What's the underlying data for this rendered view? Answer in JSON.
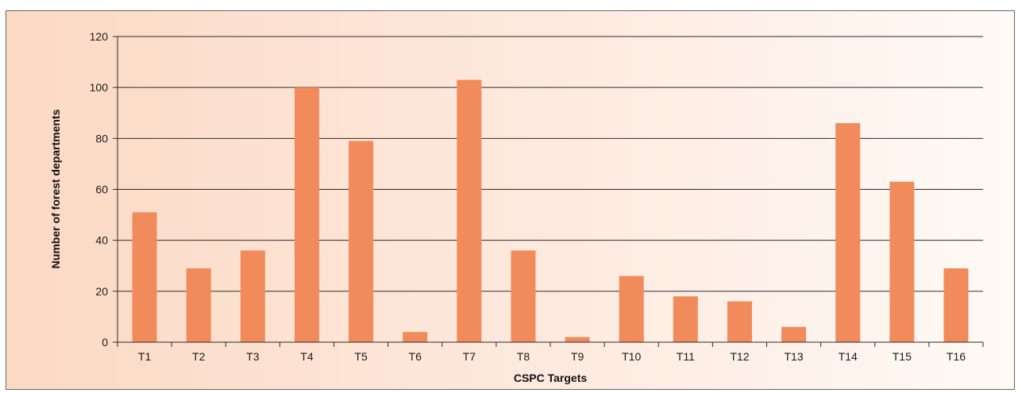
{
  "chart_data": {
    "type": "bar",
    "categories": [
      "T1",
      "T2",
      "T3",
      "T4",
      "T5",
      "T6",
      "T7",
      "T8",
      "T9",
      "T10",
      "T11",
      "T12",
      "T13",
      "T14",
      "T15",
      "T16"
    ],
    "values": [
      51,
      29,
      36,
      100,
      79,
      4,
      103,
      36,
      2,
      26,
      18,
      16,
      6,
      86,
      63,
      29
    ],
    "xlabel": "CSPC Targets",
    "ylabel": "Number of forest departments",
    "ylim": [
      0,
      120
    ],
    "yticks": [
      0,
      20,
      40,
      60,
      80,
      100,
      120
    ],
    "grid": true,
    "bar_color": "#f28b5b"
  }
}
